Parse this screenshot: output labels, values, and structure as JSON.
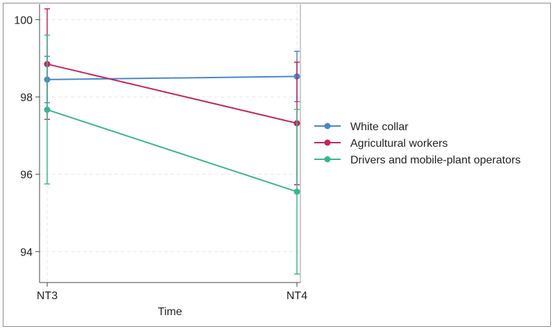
{
  "chart_data": {
    "type": "line",
    "title": "",
    "xlabel": "Time",
    "ylabel": "",
    "categories": [
      "NT3",
      "NT4"
    ],
    "ylim": [
      93.2,
      100.4
    ],
    "yticks": [
      94,
      96,
      98,
      100
    ],
    "grid": true,
    "legend_position": "right",
    "error_bars": true,
    "series": [
      {
        "name": "White collar",
        "color": "#4a86c8",
        "values": [
          98.45,
          98.53
        ],
        "ci_lower": [
          97.85,
          97.88
        ],
        "ci_upper": [
          99.05,
          99.18
        ]
      },
      {
        "name": "Agricultural workers",
        "color": "#c0275d",
        "values": [
          98.85,
          97.32
        ],
        "ci_lower": [
          97.42,
          95.73
        ],
        "ci_upper": [
          100.28,
          98.9
        ]
      },
      {
        "name": "Drivers and mobile-plant operators",
        "color": "#3bb58f",
        "values": [
          97.67,
          95.55
        ],
        "ci_lower": [
          95.75,
          93.42
        ],
        "ci_upper": [
          99.6,
          97.68
        ]
      }
    ]
  }
}
